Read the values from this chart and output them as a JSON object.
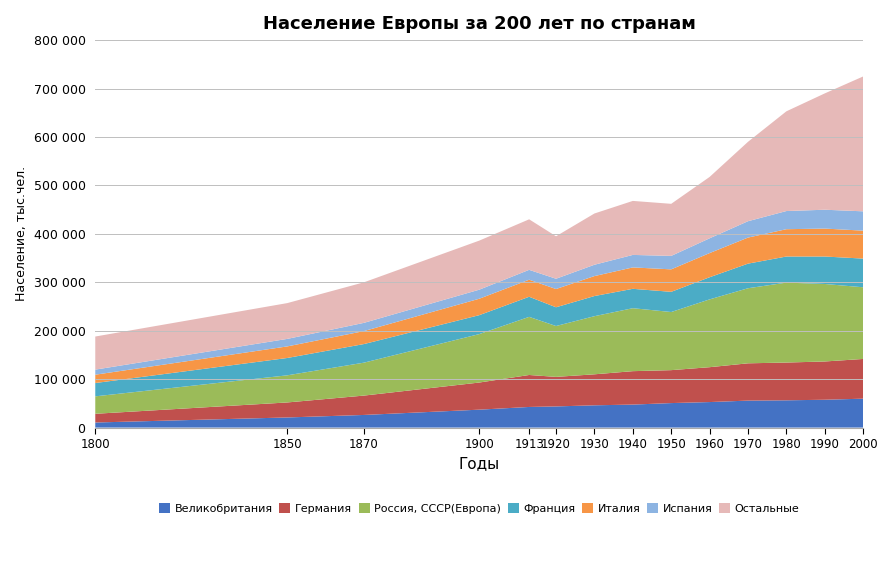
{
  "title": "Население Европы за 200 лет по странам",
  "xlabel": "Годы",
  "ylabel": "Население, тыс.чел.",
  "years": [
    1800,
    1850,
    1870,
    1900,
    1913,
    1920,
    1930,
    1940,
    1950,
    1960,
    1970,
    1980,
    1990,
    2000
  ],
  "series": {
    "Великобритания": [
      10500,
      20900,
      26100,
      37000,
      42600,
      43700,
      46000,
      47500,
      50600,
      52700,
      55700,
      56300,
      57500,
      59700
    ],
    "Германия": [
      18000,
      31000,
      40000,
      56000,
      66000,
      61000,
      64000,
      69000,
      68000,
      72000,
      77000,
      78000,
      79000,
      82000
    ],
    "Россия, СССР(Европа)": [
      36000,
      56000,
      68000,
      100000,
      120000,
      105000,
      120000,
      130000,
      120000,
      140000,
      155000,
      165000,
      160000,
      148000
    ],
    "Франция": [
      27500,
      35800,
      38400,
      39100,
      41500,
      38700,
      41600,
      40000,
      41700,
      45700,
      50800,
      53900,
      56700,
      59200
    ],
    "Италия": [
      17200,
      23900,
      26800,
      33900,
      35200,
      37700,
      41200,
      44200,
      46400,
      49900,
      53800,
      56400,
      57700,
      57700
    ],
    "Испания": [
      10500,
      15500,
      17000,
      18700,
      20400,
      21200,
      23400,
      25800,
      27800,
      30500,
      33800,
      37500,
      38900,
      39900
    ],
    "Остальные": [
      68300,
      73900,
      83700,
      101300,
      104300,
      87700,
      105800,
      111500,
      107500,
      126700,
      163900,
      205900,
      240200,
      278500
    ]
  },
  "colors": {
    "Великобритания": "#4472C4",
    "Германия": "#C0504D",
    "Россия, СССР(Европа)": "#9BBB59",
    "Франция": "#4BACC6",
    "Италия": "#F79646",
    "Испания": "#8DB4E2",
    "Остальные": "#E6B9B8"
  },
  "ylim": [
    0,
    800000
  ],
  "yticks": [
    0,
    100000,
    200000,
    300000,
    400000,
    500000,
    600000,
    700000,
    800000
  ],
  "background_color": "#FFFFFF",
  "grid_color": "#BFBFBF"
}
